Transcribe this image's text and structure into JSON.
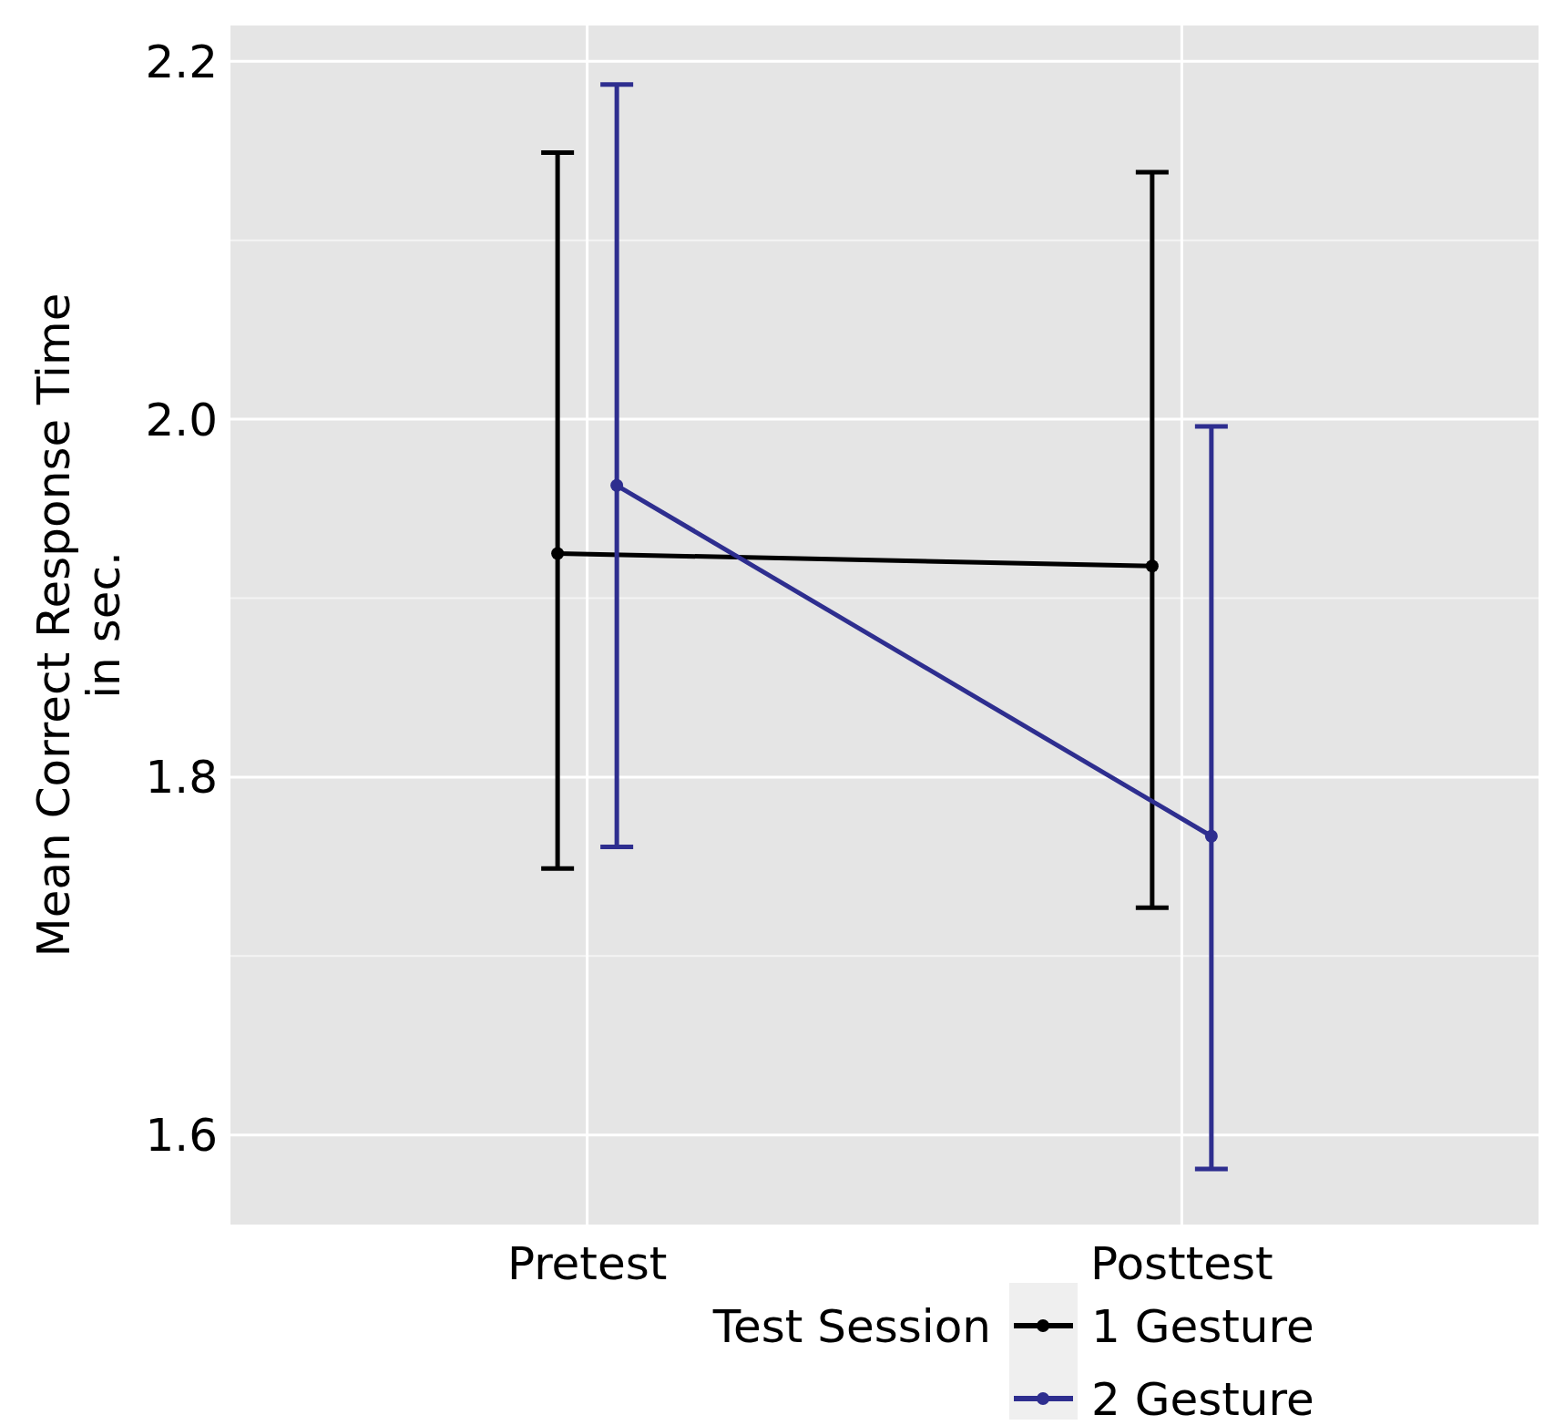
{
  "chart_data": {
    "type": "line",
    "xlabel": "Test Session",
    "ylabel": "Mean Correct Response Time\nin sec.",
    "categories": [
      "Pretest",
      "Posttest"
    ],
    "series": [
      {
        "name": "1 Gesture",
        "color": "#000000",
        "values": [
          1.925,
          1.918
        ],
        "errors": [
          [
            1.749,
            2.149
          ],
          [
            1.727,
            2.138
          ]
        ]
      },
      {
        "name": "2 Gesture",
        "color": "#2e2e8f",
        "values": [
          1.963,
          1.767
        ],
        "errors": [
          [
            1.761,
            2.187
          ],
          [
            1.581,
            1.996
          ]
        ]
      }
    ],
    "ylim": [
      1.55,
      2.22
    ],
    "yticks": [
      1.6,
      1.8,
      {
        "value": 2,
        "label": "2.0"
      },
      2.2
    ],
    "grid": true,
    "legend": "bottom",
    "marker": "circle",
    "line_style": "solid"
  }
}
